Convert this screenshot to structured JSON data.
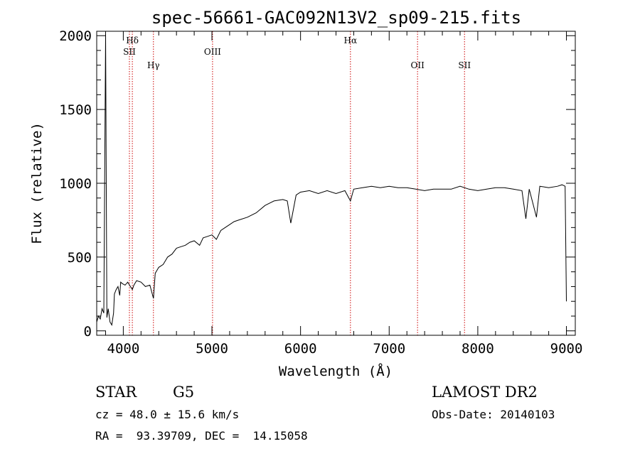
{
  "chart_data": {
    "type": "line",
    "title": "spec-56661-GAC092N13V2_sp09-215.fits",
    "xlabel": "Wavelength (Å)",
    "ylabel": "Flux (relative)",
    "xlim": [
      3700,
      9100
    ],
    "ylim": [
      -30,
      2030
    ],
    "x_ticks": [
      4000,
      5000,
      6000,
      7000,
      8000,
      9000
    ],
    "y_ticks": [
      0,
      500,
      1000,
      1500,
      2000
    ],
    "grid": false,
    "line_color": "#000000",
    "marker_color": "#cc0000",
    "spectrum": {
      "x": [
        3700,
        3720,
        3740,
        3760,
        3780,
        3800,
        3815,
        3830,
        3850,
        3870,
        3890,
        3900,
        3920,
        3940,
        3960,
        3970,
        3990,
        4020,
        4050,
        4080,
        4102,
        4120,
        4150,
        4200,
        4250,
        4300,
        4340,
        4360,
        4400,
        4450,
        4500,
        4550,
        4600,
        4650,
        4700,
        4750,
        4800,
        4861,
        4900,
        4950,
        5000,
        5050,
        5100,
        5150,
        5200,
        5250,
        5300,
        5400,
        5500,
        5600,
        5700,
        5800,
        5850,
        5890,
        5950,
        6000,
        6100,
        6200,
        6300,
        6400,
        6500,
        6563,
        6600,
        6700,
        6800,
        6900,
        7000,
        7100,
        7200,
        7300,
        7400,
        7500,
        7600,
        7700,
        7800,
        7900,
        8000,
        8100,
        8200,
        8300,
        8400,
        8498,
        8542,
        8580,
        8662,
        8700,
        8800,
        8900,
        8950,
        8985,
        9000
      ],
      "y": [
        60,
        100,
        80,
        150,
        120,
        2010,
        90,
        150,
        60,
        40,
        120,
        250,
        280,
        300,
        240,
        330,
        320,
        310,
        330,
        300,
        280,
        310,
        340,
        330,
        300,
        310,
        220,
        390,
        430,
        450,
        500,
        520,
        560,
        570,
        580,
        600,
        610,
        580,
        630,
        640,
        650,
        620,
        680,
        700,
        720,
        740,
        750,
        770,
        800,
        850,
        880,
        890,
        880,
        730,
        920,
        940,
        950,
        930,
        950,
        930,
        950,
        880,
        960,
        970,
        980,
        970,
        980,
        970,
        970,
        960,
        950,
        960,
        960,
        960,
        980,
        960,
        950,
        960,
        970,
        970,
        960,
        950,
        760,
        960,
        770,
        980,
        970,
        980,
        990,
        980,
        200
      ]
    },
    "spectral_lines": [
      {
        "label": "Hδ",
        "wavelength": 4102
      },
      {
        "label": "SII",
        "wavelength": 4069
      },
      {
        "label": "Hγ",
        "wavelength": 4340
      },
      {
        "label": "OIII",
        "wavelength": 5007
      },
      {
        "label": "Hα",
        "wavelength": 6563
      },
      {
        "label": "OII",
        "wavelength": 7320
      },
      {
        "label": "SII",
        "wavelength": 7850
      }
    ]
  },
  "info": {
    "class": "STAR",
    "subclass": "G5",
    "cz": "cz = 48.0 ± 15.6 km/s",
    "coords": "RA =  93.39709, DEC =  14.15058",
    "survey": "LAMOST DR2",
    "obs_date": "Obs-Date: 20140103"
  }
}
